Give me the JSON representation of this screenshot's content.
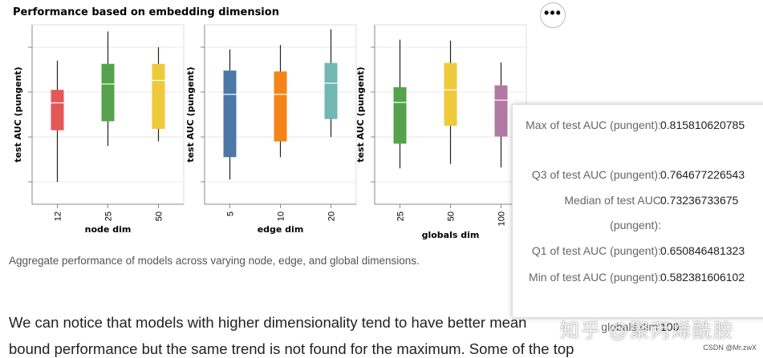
{
  "title": "Performance based on embedding dimension",
  "caption": "Aggregate performance of models across varying node, edge, and global dimensions.",
  "body_text": {
    "line1": "We can notice that models with higher dimensionality tend to have better mean",
    "line2": "bound performance but the same trend is not found for the maximum. Some of the top"
  },
  "tooltip": {
    "rows": [
      {
        "label": "Max of test AUC (pungent):",
        "value": "0.815810620785"
      },
      {
        "label": "Q3 of test AUC (pungent):",
        "value": "0.764677226543"
      },
      {
        "label": "Median of test AUC (pungent):",
        "value": "0.73236733675"
      },
      {
        "label": "Q1 of test AUC (pungent):",
        "value": "0.650846481323"
      },
      {
        "label": "Min of test AUC (pungent):",
        "value": "0.582381606102"
      },
      {
        "label": "globals dim:",
        "value": "100"
      }
    ]
  },
  "watermark": "知乎 @聚丙烯酰胺",
  "watermark_small": "CSDN @Mr.zwX",
  "chart_data": [
    {
      "type": "boxplot",
      "xlabel": "node dim",
      "ylabel": "test AUC (pungent)",
      "categories": [
        "12",
        "25",
        "50"
      ],
      "colors": [
        "#e45756",
        "#54a24b",
        "#eeca3b"
      ],
      "boxes": [
        {
          "min": 0.55,
          "q1": 0.665,
          "median": 0.726,
          "q3": 0.755,
          "max": 0.82
        },
        {
          "min": 0.63,
          "q1": 0.685,
          "median": 0.768,
          "q3": 0.813,
          "max": 0.885
        },
        {
          "min": 0.64,
          "q1": 0.668,
          "median": 0.776,
          "q3": 0.813,
          "max": 0.85
        }
      ]
    },
    {
      "type": "boxplot",
      "xlabel": "edge dim",
      "ylabel": "test AUC (pungent)",
      "categories": [
        "5",
        "10",
        "20"
      ],
      "colors": [
        "#4c78a8",
        "#f58518",
        "#72b7b2"
      ],
      "boxes": [
        {
          "min": 0.555,
          "q1": 0.605,
          "median": 0.745,
          "q3": 0.798,
          "max": 0.845
        },
        {
          "min": 0.605,
          "q1": 0.64,
          "median": 0.745,
          "q3": 0.796,
          "max": 0.855
        },
        {
          "min": 0.65,
          "q1": 0.69,
          "median": 0.77,
          "q3": 0.815,
          "max": 0.89
        }
      ]
    },
    {
      "type": "boxplot",
      "xlabel": "globals dim",
      "ylabel": "test AUC (pungent)",
      "categories": [
        "25",
        "50",
        "100"
      ],
      "colors": [
        "#54a24b",
        "#eeca3b",
        "#b279a2"
      ],
      "boxes": [
        {
          "min": 0.58,
          "q1": 0.635,
          "median": 0.727,
          "q3": 0.761,
          "max": 0.867
        },
        {
          "min": 0.59,
          "q1": 0.675,
          "median": 0.755,
          "q3": 0.815,
          "max": 0.865
        },
        {
          "min": 0.582,
          "q1": 0.651,
          "median": 0.732,
          "q3": 0.765,
          "max": 0.816
        }
      ]
    }
  ]
}
